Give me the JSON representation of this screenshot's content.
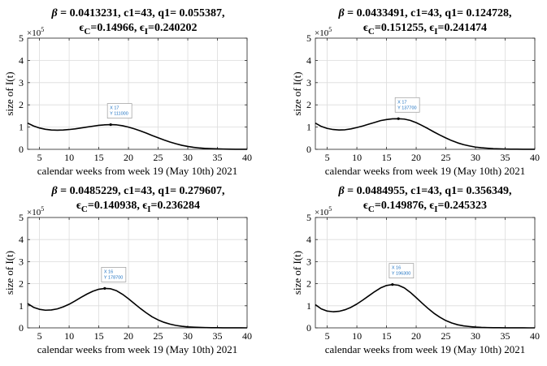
{
  "chart_data": [
    {
      "type": "line",
      "title_line1": {
        "beta_sym": "β",
        "rest": " = 0.0413231, c1=43, q1= 0.055387,"
      },
      "title_line2": {
        "eC_sym": "ϵ",
        "eC_sub": "C",
        "eC_val": "=0.14966, ",
        "eI_sym": "ϵ",
        "eI_sub": "I",
        "eI_val": "=0.240202"
      },
      "xlabel": "calendar weeks from week 19 (May 10th) 2021",
      "ylabel": "size of I(t)",
      "y_multiplier": {
        "base": "×10",
        "exp": "5"
      },
      "xlim": [
        3,
        40
      ],
      "ylim": [
        0,
        5
      ],
      "xticks": [
        5,
        10,
        15,
        20,
        25,
        30,
        35,
        40
      ],
      "yticks": [
        0,
        1,
        2,
        3,
        4,
        5
      ],
      "grid": true,
      "series": [
        {
          "name": "I(t)",
          "x": [
            3,
            4,
            5,
            6,
            7,
            8,
            9,
            10,
            11,
            12,
            13,
            14,
            15,
            16,
            17,
            18,
            19,
            20,
            21,
            22,
            23,
            24,
            25,
            26,
            27,
            28,
            29,
            30,
            31,
            32,
            33,
            34,
            35,
            36,
            37,
            38,
            39,
            40
          ],
          "y": [
            1.18,
            1.05,
            0.96,
            0.9,
            0.87,
            0.86,
            0.87,
            0.89,
            0.92,
            0.96,
            1.0,
            1.04,
            1.08,
            1.1,
            1.11,
            1.1,
            1.06,
            1.0,
            0.92,
            0.83,
            0.73,
            0.62,
            0.52,
            0.42,
            0.33,
            0.25,
            0.18,
            0.13,
            0.09,
            0.06,
            0.04,
            0.03,
            0.02,
            0.01,
            0.005,
            0.003,
            0.002,
            0.001
          ]
        }
      ],
      "datatip": {
        "x_label": "X 17",
        "y_label": "Y 111000",
        "x": 17,
        "y": 1.11
      }
    },
    {
      "type": "line",
      "title_line1": {
        "beta_sym": "β",
        "rest": " = 0.0433491, c1=43, q1= 0.124728,"
      },
      "title_line2": {
        "eC_sym": "ϵ",
        "eC_sub": "C",
        "eC_val": "=0.151255, ",
        "eI_sym": "ϵ",
        "eI_sub": "I",
        "eI_val": "=0.241474"
      },
      "xlabel": "calendar weeks from week 19 (May 10th) 2021",
      "ylabel": "size of I(t)",
      "y_multiplier": {
        "base": "×10",
        "exp": "5"
      },
      "xlim": [
        3,
        40
      ],
      "ylim": [
        0,
        5
      ],
      "xticks": [
        5,
        10,
        15,
        20,
        25,
        30,
        35,
        40
      ],
      "yticks": [
        0,
        1,
        2,
        3,
        4,
        5
      ],
      "grid": true,
      "series": [
        {
          "name": "I(t)",
          "x": [
            3,
            4,
            5,
            6,
            7,
            8,
            9,
            10,
            11,
            12,
            13,
            14,
            15,
            16,
            17,
            18,
            19,
            20,
            21,
            22,
            23,
            24,
            25,
            26,
            27,
            28,
            29,
            30,
            31,
            32,
            33,
            34,
            35,
            36,
            37,
            38,
            39,
            40
          ],
          "y": [
            1.18,
            1.03,
            0.94,
            0.89,
            0.87,
            0.88,
            0.92,
            0.98,
            1.05,
            1.13,
            1.21,
            1.29,
            1.34,
            1.37,
            1.377,
            1.36,
            1.3,
            1.2,
            1.07,
            0.93,
            0.78,
            0.64,
            0.51,
            0.39,
            0.29,
            0.21,
            0.15,
            0.1,
            0.07,
            0.05,
            0.03,
            0.02,
            0.012,
            0.008,
            0.005,
            0.003,
            0.002,
            0.001
          ]
        }
      ],
      "datatip": {
        "x_label": "X 17",
        "y_label": "Y 137700",
        "x": 17,
        "y": 1.377
      }
    },
    {
      "type": "line",
      "title_line1": {
        "beta_sym": "β",
        "rest": " = 0.0485229, c1=43, q1= 0.279607,"
      },
      "title_line2": {
        "eC_sym": "ϵ",
        "eC_sub": "C",
        "eC_val": "=0.140938, ",
        "eI_sym": "ϵ",
        "eI_sub": "I",
        "eI_val": "=0.236284"
      },
      "xlabel": "calendar weeks from week 19 (May 10th) 2021",
      "ylabel": "size of I(t)",
      "y_multiplier": {
        "base": "×10",
        "exp": "5"
      },
      "xlim": [
        3,
        40
      ],
      "ylim": [
        0,
        5
      ],
      "xticks": [
        5,
        10,
        15,
        20,
        25,
        30,
        35,
        40
      ],
      "yticks": [
        0,
        1,
        2,
        3,
        4,
        5
      ],
      "grid": true,
      "series": [
        {
          "name": "I(t)",
          "x": [
            3,
            4,
            5,
            6,
            7,
            8,
            9,
            10,
            11,
            12,
            13,
            14,
            15,
            16,
            17,
            18,
            19,
            20,
            21,
            22,
            23,
            24,
            25,
            26,
            27,
            28,
            29,
            30,
            31,
            32,
            33,
            34,
            35,
            36,
            37,
            38,
            39,
            40
          ],
          "y": [
            1.1,
            0.93,
            0.84,
            0.8,
            0.81,
            0.86,
            0.95,
            1.07,
            1.22,
            1.38,
            1.53,
            1.66,
            1.75,
            1.787,
            1.77,
            1.68,
            1.52,
            1.32,
            1.1,
            0.88,
            0.68,
            0.5,
            0.36,
            0.25,
            0.17,
            0.11,
            0.07,
            0.045,
            0.03,
            0.02,
            0.012,
            0.008,
            0.005,
            0.003,
            0.002,
            0.001,
            0.001,
            0.0005
          ]
        }
      ],
      "datatip": {
        "x_label": "X 16",
        "y_label": "Y 178700",
        "x": 16,
        "y": 1.787
      }
    },
    {
      "type": "line",
      "title_line1": {
        "beta_sym": "β",
        "rest": " = 0.0484955, c1=43, q1= 0.356349,"
      },
      "title_line2": {
        "eC_sym": "ϵ",
        "eC_sub": "C",
        "eC_val": "=0.149876, ",
        "eI_sym": "ϵ",
        "eI_sub": "I",
        "eI_val": "=0.245323"
      },
      "xlabel": "calendar weeks from week 19 (May 10th) 2021",
      "ylabel": "size of I(t)",
      "y_multiplier": {
        "base": "×10",
        "exp": "5"
      },
      "xlim": [
        3,
        40
      ],
      "ylim": [
        0,
        5
      ],
      "xticks": [
        5,
        10,
        15,
        20,
        25,
        30,
        35,
        40
      ],
      "yticks": [
        0,
        1,
        2,
        3,
        4,
        5
      ],
      "grid": true,
      "series": [
        {
          "name": "I(t)",
          "x": [
            3,
            4,
            5,
            6,
            7,
            8,
            9,
            10,
            11,
            12,
            13,
            14,
            15,
            16,
            17,
            18,
            19,
            20,
            21,
            22,
            23,
            24,
            25,
            26,
            27,
            28,
            29,
            30,
            31,
            32,
            33,
            34,
            35,
            36,
            37,
            38,
            39,
            40
          ],
          "y": [
            1.05,
            0.86,
            0.76,
            0.73,
            0.75,
            0.82,
            0.93,
            1.08,
            1.26,
            1.45,
            1.64,
            1.81,
            1.92,
            1.963,
            1.93,
            1.81,
            1.61,
            1.37,
            1.12,
            0.88,
            0.66,
            0.48,
            0.33,
            0.22,
            0.14,
            0.09,
            0.06,
            0.035,
            0.02,
            0.013,
            0.008,
            0.005,
            0.003,
            0.002,
            0.001,
            0.001,
            0.0005,
            0.0003
          ]
        }
      ],
      "datatip": {
        "x_label": "X 16",
        "y_label": "Y 196300",
        "x": 16,
        "y": 1.963
      }
    }
  ]
}
